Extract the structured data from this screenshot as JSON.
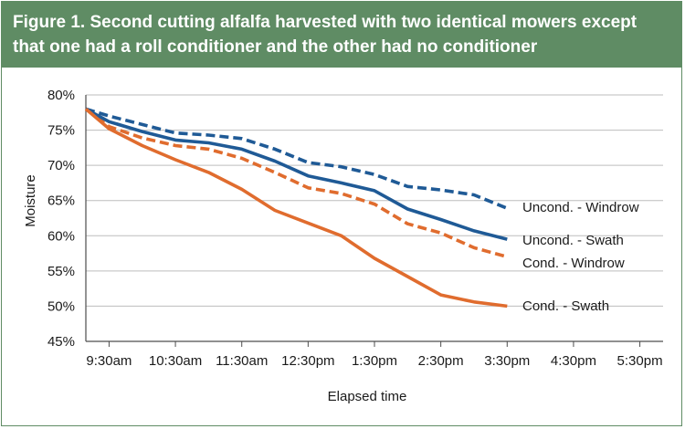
{
  "title": {
    "line1": "Figure 1. Second cutting alfalfa harvested with two identical mowers except",
    "line2": "that one had a roll conditioner and the other had no conditioner"
  },
  "colors": {
    "header_bg": "#5f8c64",
    "unconditioned": "#1f5a96",
    "conditioned": "#e06c2e"
  },
  "chart_data": {
    "type": "line",
    "title": "Figure 1. Second cutting alfalfa harvested with two identical mowers except that one had a roll conditioner and the other had no conditioner",
    "xlabel": "Elapsed time",
    "ylabel": "Moisture",
    "x_ticks": [
      "9:30am",
      "10:30am",
      "11:30am",
      "12:30pm",
      "1:30pm",
      "2:30pm",
      "3:30pm",
      "4:30pm",
      "5:30pm"
    ],
    "x_unit": "hours after 9:30am",
    "xlim": [
      -0.35,
      8.35
    ],
    "ylim": [
      45,
      80
    ],
    "y_ticks": [
      45,
      50,
      55,
      60,
      65,
      70,
      75,
      80
    ],
    "y_tick_labels": [
      "45%",
      "50%",
      "55%",
      "60%",
      "65%",
      "70%",
      "75%",
      "80%"
    ],
    "grid": "horizontal",
    "series": [
      {
        "name": "Uncond. - Windrow",
        "color": "#1f5a96",
        "style": "dashed",
        "x": [
          -0.35,
          0,
          0.5,
          1,
          1.5,
          2,
          2.5,
          3,
          3.5,
          4,
          4.5,
          5,
          5.5,
          6
        ],
        "values": [
          78,
          77,
          75.8,
          74.6,
          74.3,
          73.8,
          72.3,
          70.4,
          69.8,
          68.7,
          67.0,
          66.5,
          65.8,
          63.9
        ]
      },
      {
        "name": "Uncond. - Swath",
        "color": "#1f5a96",
        "style": "solid",
        "x": [
          -0.35,
          0,
          0.5,
          1,
          1.5,
          2,
          2.5,
          3,
          3.5,
          4,
          4.5,
          5,
          5.5,
          6
        ],
        "values": [
          78,
          76.2,
          74.8,
          73.6,
          73.2,
          72.3,
          70.6,
          68.5,
          67.5,
          66.4,
          63.8,
          62.3,
          60.7,
          59.5
        ]
      },
      {
        "name": "Cond. - Windrow",
        "color": "#e06c2e",
        "style": "dashed",
        "x": [
          -0.35,
          0,
          0.5,
          1,
          1.5,
          2,
          2.5,
          3,
          3.5,
          4,
          4.5,
          5,
          5.5,
          6
        ],
        "values": [
          78,
          75.5,
          73.9,
          72.8,
          72.3,
          71.0,
          69.0,
          66.8,
          66.0,
          64.5,
          61.7,
          60.4,
          58.3,
          57.0
        ]
      },
      {
        "name": "Cond. - Swath",
        "color": "#e06c2e",
        "style": "solid",
        "x": [
          -0.35,
          0,
          0.5,
          1,
          1.5,
          2,
          2.5,
          3,
          3.5,
          4,
          4.5,
          5,
          5.5,
          6
        ],
        "values": [
          78,
          75.2,
          72.8,
          70.8,
          69.0,
          66.6,
          63.6,
          61.8,
          60.0,
          56.8,
          54.2,
          51.6,
          50.6,
          50.0
        ]
      }
    ]
  }
}
